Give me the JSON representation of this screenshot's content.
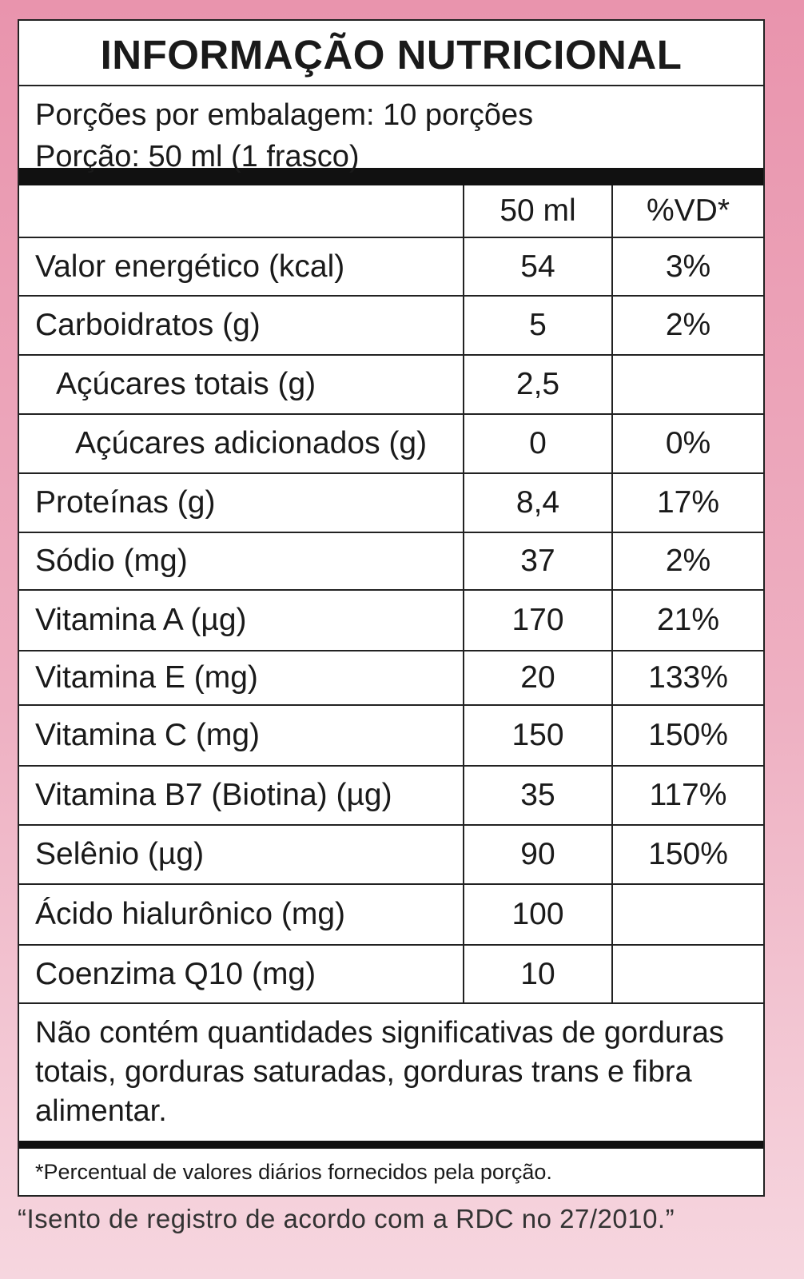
{
  "title": "INFORMAÇÃO NUTRICIONAL",
  "portions": {
    "per_package": "Porções por embalagem: 10 porções",
    "serving": "Porção: 50 ml (1 frasco)"
  },
  "columns": {
    "amount": "50 ml",
    "dv": "%VD*"
  },
  "rows": [
    {
      "name": "Valor energético (kcal)",
      "amount": "54",
      "dv": "3%"
    },
    {
      "name": "Carboidratos (g)",
      "amount": "5",
      "dv": "2%"
    },
    {
      "name": "Açúcares totais (g)",
      "amount": "2,5",
      "dv": ""
    },
    {
      "name": "Açúcares adicionados (g)",
      "amount": "0",
      "dv": "0%"
    },
    {
      "name": "Proteínas (g)",
      "amount": "8,4",
      "dv": "17%"
    },
    {
      "name": "Sódio (mg)",
      "amount": "37",
      "dv": "2%"
    },
    {
      "name": "Vitamina A (µg)",
      "amount": "170",
      "dv": "21%"
    },
    {
      "name": "Vitamina E (mg)",
      "amount": "20",
      "dv": "133%"
    },
    {
      "name": "Vitamina C (mg)",
      "amount": "150",
      "dv": "150%"
    },
    {
      "name": "Vitamina B7 (Biotina) (µg)",
      "amount": "35",
      "dv": "117%"
    },
    {
      "name": "Selênio (µg)",
      "amount": "90",
      "dv": "150%"
    },
    {
      "name": "Ácido hialurônico (mg)",
      "amount": "100",
      "dv": ""
    },
    {
      "name": "Coenzima Q10 (mg)",
      "amount": "10",
      "dv": ""
    }
  ],
  "note": "Não contém quantidades significativas de gorduras totais, gorduras saturadas, gorduras trans e fibra alimentar.",
  "footnote": "*Percentual de valores diários fornecidos pela porção.",
  "disclaimer": "“Isento de registro de acordo com a RDC no 27/2010.”"
}
